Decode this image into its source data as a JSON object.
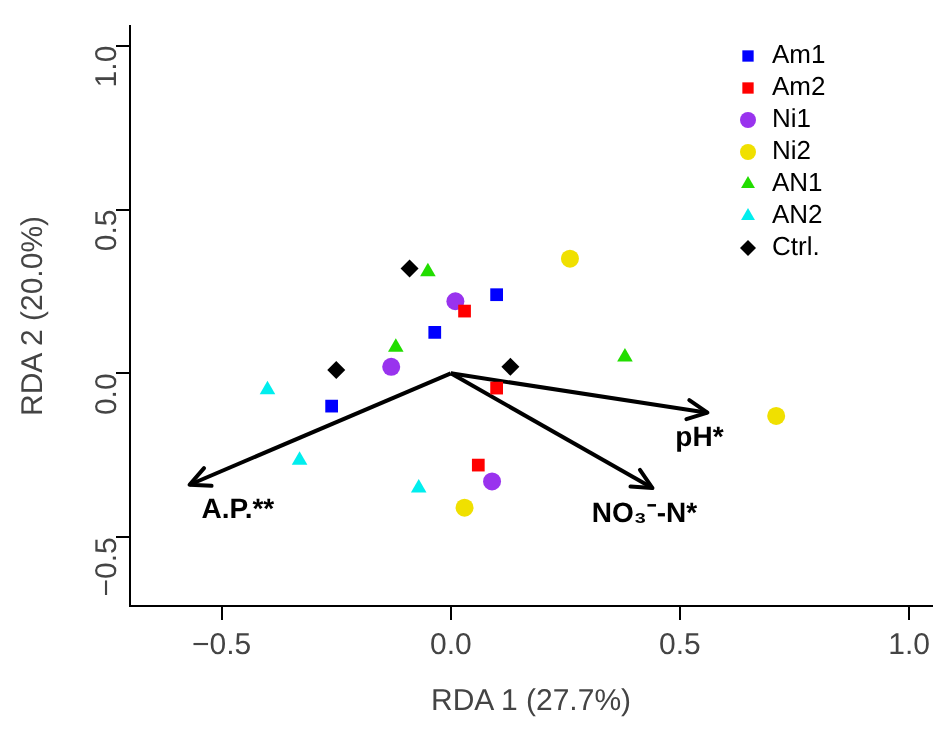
{
  "chart_data": {
    "type": "scatter",
    "xlabel": "RDA 1 (27.7%)",
    "ylabel": "RDA 2 (20.0%)",
    "xlim": [
      -0.7,
      1.05
    ],
    "ylim": [
      -0.71,
      1.06
    ],
    "xticks": [
      {
        "value": -0.5,
        "label": "−0.5"
      },
      {
        "value": 0,
        "label": "0.0"
      },
      {
        "value": 0.5,
        "label": "0.5"
      },
      {
        "value": 1,
        "label": "1.0"
      }
    ],
    "yticks": [
      {
        "value": -0.5,
        "label": "−0.5"
      },
      {
        "value": 0,
        "label": "0.0"
      },
      {
        "value": 0.5,
        "label": "0.5"
      },
      {
        "value": 1,
        "label": "1.0"
      }
    ],
    "grid": false,
    "legend": "top right",
    "series": [
      {
        "name": "Am1",
        "color": "#0000ff",
        "marker": "square",
        "x": [
          0.1,
          -0.035,
          -0.26
        ],
        "values": [
          0.24,
          0.125,
          -0.1
        ]
      },
      {
        "name": "Am2",
        "color": "#ff0000",
        "marker": "square",
        "x": [
          0.03,
          0.1,
          0.06
        ],
        "values": [
          0.19,
          -0.045,
          -0.28
        ]
      },
      {
        "name": "Ni1",
        "color": "#9933ee",
        "marker": "circle",
        "x": [
          0.01,
          -0.13,
          0.09
        ],
        "values": [
          0.22,
          0.02,
          -0.33
        ]
      },
      {
        "name": "Ni2",
        "color": "#f0e000",
        "marker": "circle",
        "x": [
          0.26,
          0.71,
          0.03
        ],
        "values": [
          0.35,
          -0.13,
          -0.41
        ]
      },
      {
        "name": "AN1",
        "color": "#22dd00",
        "marker": "triangle",
        "x": [
          -0.05,
          -0.12,
          0.38
        ],
        "values": [
          0.31,
          0.08,
          0.05
        ]
      },
      {
        "name": "AN2",
        "color": "#00eeee",
        "marker": "triangle",
        "x": [
          -0.4,
          -0.33,
          -0.07
        ],
        "values": [
          -0.05,
          -0.265,
          -0.35
        ]
      },
      {
        "name": "Ctrl.",
        "color": "#000000",
        "marker": "diamond",
        "x": [
          -0.09,
          -0.25,
          0.13
        ],
        "values": [
          0.32,
          0.01,
          0.02
        ]
      },
      {
        "type": "line",
        "color": "#000000",
        "marker": "none",
        "x": [
          0,
          -0.57
        ],
        "values": [
          0,
          -0.34
        ]
      },
      {
        "type": "line",
        "color": "#000000",
        "marker": "none",
        "x": [
          0,
          0.56
        ],
        "values": [
          0,
          -0.12
        ]
      },
      {
        "type": "line",
        "color": "#000000",
        "marker": "none",
        "x": [
          0,
          0.44
        ],
        "values": [
          0,
          -0.35
        ]
      }
    ],
    "annotations": [
      {
        "text": "A.P.**",
        "x": -0.57,
        "y": -0.34
      },
      {
        "text": "pH*",
        "x": 0.56,
        "y": -0.12
      },
      {
        "text": "NO₃⁻-N*",
        "x": 0.44,
        "y": -0.35
      }
    ]
  }
}
